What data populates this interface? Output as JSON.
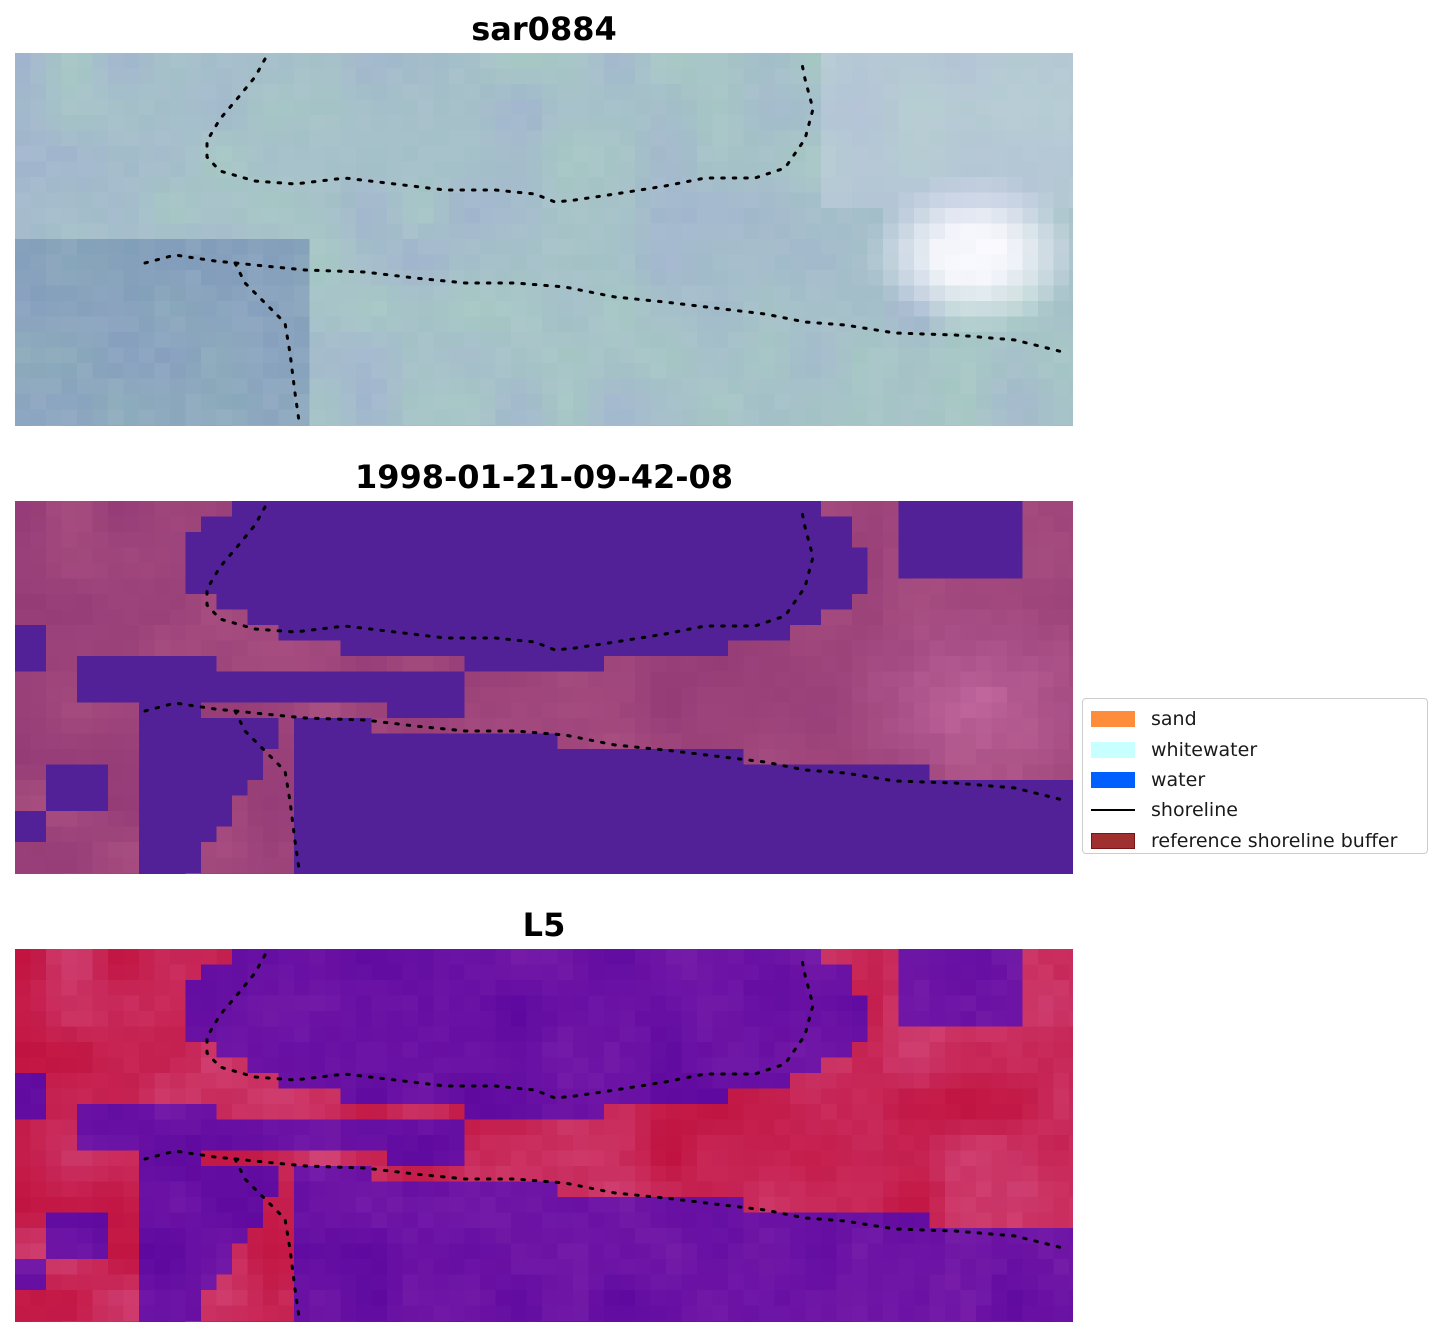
{
  "panels": [
    {
      "title": "sar0884",
      "style": "rgb"
    },
    {
      "title": "1998-01-21-09-42-08",
      "style": "classified"
    },
    {
      "title": "L5",
      "style": "index"
    }
  ],
  "legend": {
    "items": [
      {
        "label": "sand",
        "color": "#ff8c3a",
        "kind": "patch"
      },
      {
        "label": "whitewater",
        "color": "#c8ffff",
        "kind": "patch"
      },
      {
        "label": "water",
        "color": "#0060ff",
        "kind": "patch"
      },
      {
        "label": "shoreline",
        "color": "#000000",
        "kind": "line"
      },
      {
        "label": "reference shoreline buffer",
        "color": "#a03030",
        "kind": "patch"
      }
    ]
  }
}
